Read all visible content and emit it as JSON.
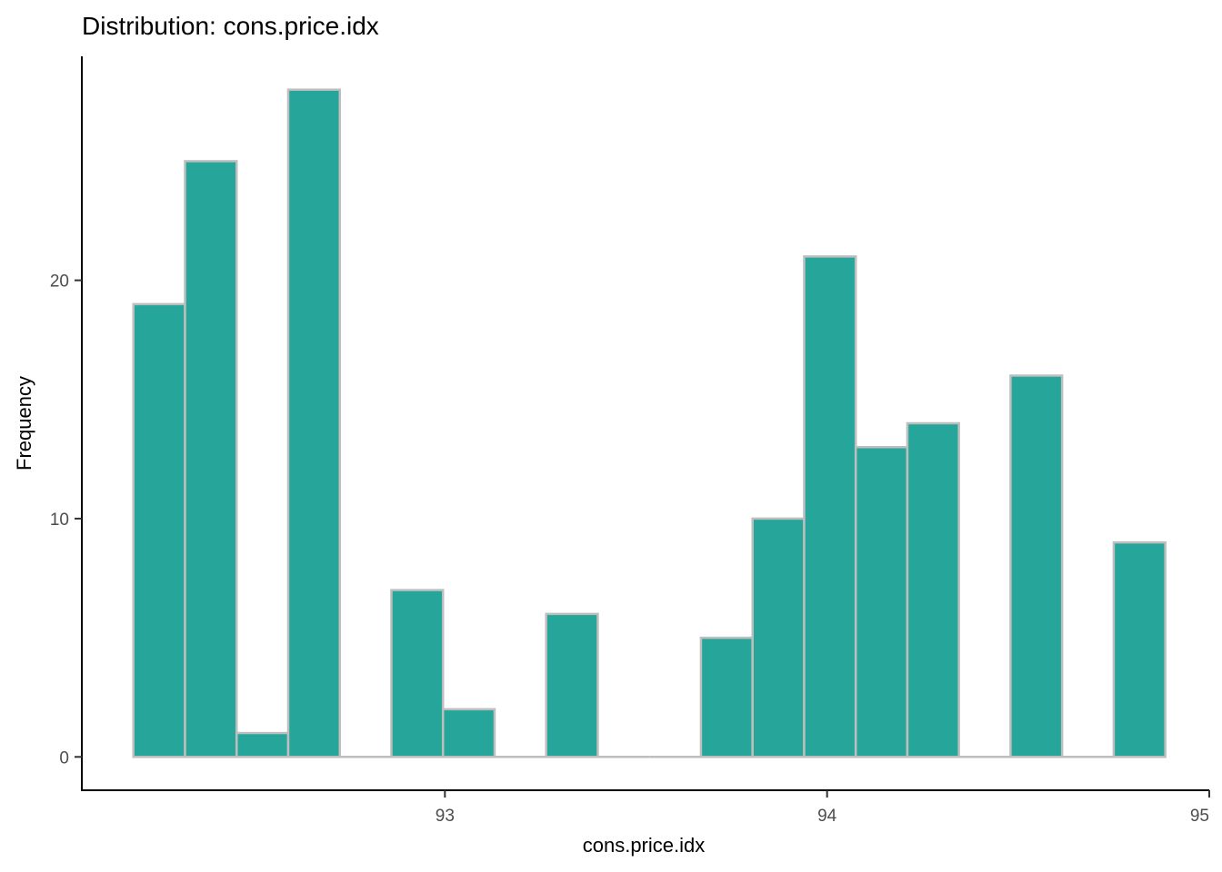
{
  "chart_data": {
    "type": "bar",
    "title": "Distribution: cons.price.idx",
    "xlabel": "cons.price.idx",
    "ylabel": "Frequency",
    "xlim": [
      92.05,
      95.0
    ],
    "ylim": [
      -1.4,
      29.4
    ],
    "x_ticks": [
      93,
      94,
      95
    ],
    "y_ticks": [
      0,
      10,
      20
    ],
    "bin_width": 0.135,
    "bins": [
      {
        "x0": 92.185,
        "x1": 92.32,
        "count": 19
      },
      {
        "x0": 92.32,
        "x1": 92.455,
        "count": 25
      },
      {
        "x0": 92.455,
        "x1": 92.59,
        "count": 1
      },
      {
        "x0": 92.59,
        "x1": 92.725,
        "count": 28
      },
      {
        "x0": 92.725,
        "x1": 92.86,
        "count": 0
      },
      {
        "x0": 92.86,
        "x1": 92.995,
        "count": 7
      },
      {
        "x0": 92.995,
        "x1": 93.13,
        "count": 2
      },
      {
        "x0": 93.13,
        "x1": 93.265,
        "count": 0
      },
      {
        "x0": 93.265,
        "x1": 93.4,
        "count": 6
      },
      {
        "x0": 93.4,
        "x1": 93.535,
        "count": 0
      },
      {
        "x0": 93.535,
        "x1": 93.67,
        "count": 0
      },
      {
        "x0": 93.67,
        "x1": 93.805,
        "count": 5
      },
      {
        "x0": 93.805,
        "x1": 93.94,
        "count": 10
      },
      {
        "x0": 93.94,
        "x1": 94.075,
        "count": 21
      },
      {
        "x0": 94.075,
        "x1": 94.21,
        "count": 13
      },
      {
        "x0": 94.21,
        "x1": 94.345,
        "count": 14
      },
      {
        "x0": 94.345,
        "x1": 94.48,
        "count": 0
      },
      {
        "x0": 94.48,
        "x1": 94.615,
        "count": 16
      },
      {
        "x0": 94.615,
        "x1": 94.75,
        "count": 0
      },
      {
        "x0": 94.75,
        "x1": 94.885,
        "count": 9
      }
    ],
    "bar_fill": "#26a69a",
    "bar_outline": "#bebebe",
    "grid": false,
    "legend": "none"
  }
}
